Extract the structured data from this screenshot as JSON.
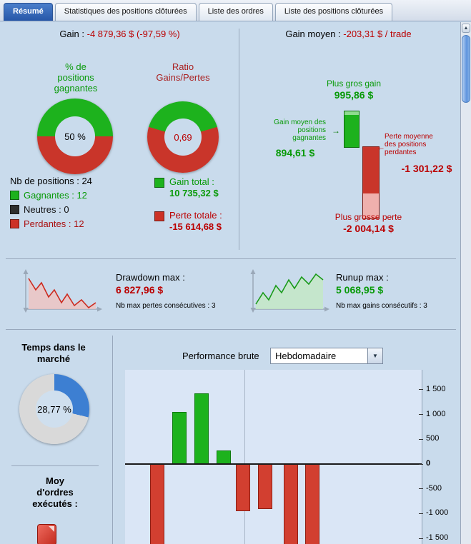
{
  "colors": {
    "green": "#1db21d",
    "green_text": "#089a08",
    "red": "#c9352a",
    "red_text": "#bb0000",
    "pink": "#efb0ad",
    "blue": "#3d7fd2",
    "neutral_dark": "#2e2e2e",
    "gray_track": "#d9d9d9",
    "active_tab_blue": "#2757a8"
  },
  "icons": {
    "dropdown_arrow": "▼",
    "scroll_up_arrow": "▲",
    "avg_gain_arrow": "→",
    "avg_loss_arrow": "←"
  },
  "tabs": {
    "items": [
      {
        "label": "Résumé",
        "active": true
      },
      {
        "label": "Statistiques des positions clôturées",
        "active": false
      },
      {
        "label": "Liste des ordres",
        "active": false
      },
      {
        "label": "Liste des positions clôturées",
        "active": false
      }
    ]
  },
  "header": {
    "gain_label": "Gain : ",
    "gain_value": "-4 879,36 $ (-97,59 %)",
    "gain_moyen_label": "Gain moyen : ",
    "gain_moyen_value": "-203,31 $ / trade"
  },
  "donut_win": {
    "title": "% de positions gagnantes",
    "value": "50 %",
    "green_pct": 50
  },
  "donut_ratio": {
    "title": "Ratio Gains/Pertes",
    "value": "0,69",
    "green_pct": 40.8
  },
  "positions": {
    "total": "Nb de positions : 24",
    "gagnantes": "Gagnantes : 12",
    "neutres": "Neutres : 0",
    "perdantes": "Perdantes : 12"
  },
  "totals": {
    "gain_label": "Gain total :",
    "gain_value": "10 735,32 $",
    "perte_label": "Perte totale :",
    "perte_value": "-15 614,68 $"
  },
  "extremes": {
    "plus_gros_gain_label": "Plus gros gain",
    "plus_gros_gain_value": "995,86 $",
    "gain_moyen_label": "Gain moyen des positions gagnantes",
    "gain_moyen_value": "894,61 $",
    "perte_moyenne_label": "Perte moyenne des positions perdantes",
    "perte_moyenne_value": "-1 301,22 $",
    "plus_grosse_perte_label": "Plus grosse perte",
    "plus_grosse_perte_value": "-2 004,14 $",
    "max_gain_num": 995.86,
    "avg_gain_num": 894.61,
    "avg_loss_num": -1301.22,
    "max_loss_num": -2004.14
  },
  "drawdown": {
    "label": "Drawdown max :",
    "value": "6 827,96 $",
    "sub": "Nb max pertes consécutives : 3"
  },
  "runup": {
    "label": "Runup max :",
    "value": "5 068,95 $",
    "sub": "Nb max gains consécutifs : 3"
  },
  "market_time": {
    "title": "Temps dans le marché",
    "value": "28,77 %",
    "pct": 28.77
  },
  "orders": {
    "label": "Moy d'ordres exécutés :"
  },
  "performance": {
    "label": "Performance brute",
    "period": "Hebdomadaire"
  },
  "chart_data": {
    "type": "bar",
    "title": "Performance brute",
    "period": "Hebdomadaire",
    "values": [
      -2000,
      1050,
      1430,
      280,
      -950,
      -900,
      -1900,
      -1750
    ],
    "yticks": [
      1500,
      1000,
      500,
      0,
      -500,
      -1000,
      -1500
    ],
    "ytick_labels": [
      "1 500",
      "1 000",
      "500",
      "0",
      "-500",
      "-1 000",
      "-1 500"
    ],
    "ylim_visible": [
      -1650,
      1900
    ],
    "positive_color": "#1db21d",
    "negative_color": "#d23f30",
    "legend_position": "none",
    "grid": "zero line plus one vertical period separator"
  }
}
